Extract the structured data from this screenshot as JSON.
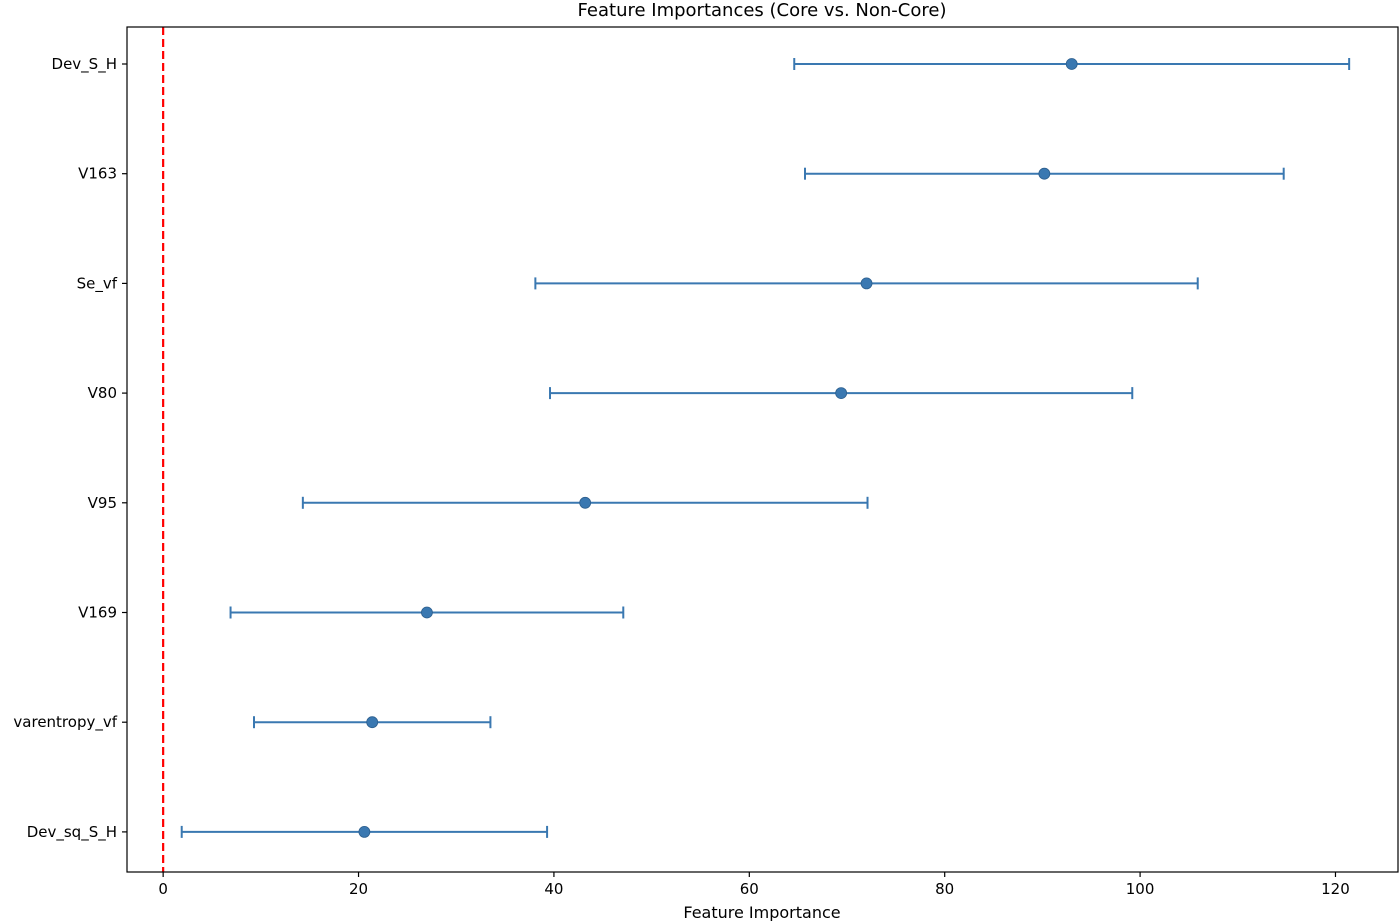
{
  "chart_data": {
    "type": "scatter",
    "title": "Feature Importances (Core vs. Non-Core)",
    "xlabel": "Feature Importance",
    "ylabel": "",
    "xlim": [
      -3.7,
      126.4
    ],
    "xticks": [
      0,
      20,
      40,
      60,
      80,
      100,
      120
    ],
    "grid": false,
    "reference_line": {
      "x": 0,
      "color": "#ff0000",
      "style": "dashed"
    },
    "marker_color": "#3a78b1",
    "errorbar_color": "#3a78b1",
    "points": [
      {
        "feature": "Dev_S_H",
        "value": 93.0,
        "lower": 64.6,
        "upper": 121.4
      },
      {
        "feature": "V163",
        "value": 90.2,
        "lower": 65.7,
        "upper": 114.7
      },
      {
        "feature": "Se_vf",
        "value": 72.0,
        "lower": 38.1,
        "upper": 105.9
      },
      {
        "feature": "V80",
        "value": 69.4,
        "lower": 39.6,
        "upper": 99.2
      },
      {
        "feature": "V95",
        "value": 43.2,
        "lower": 14.3,
        "upper": 72.1
      },
      {
        "feature": "V169",
        "value": 27.0,
        "lower": 6.9,
        "upper": 47.1
      },
      {
        "feature": "varentropy_vf",
        "value": 21.4,
        "lower": 9.3,
        "upper": 33.5
      },
      {
        "feature": "Dev_sq_S_H",
        "value": 20.6,
        "lower": 1.9,
        "upper": 39.3
      }
    ]
  }
}
